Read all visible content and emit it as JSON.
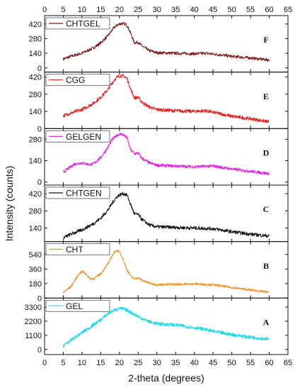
{
  "chart_data": {
    "type": "line",
    "xlabel": "2-theta (degrees)",
    "ylabel": "Intensity (counts)",
    "xlim": [
      0,
      65
    ],
    "x_ticks": [
      0,
      5,
      10,
      15,
      20,
      25,
      30,
      35,
      40,
      45,
      50,
      55,
      60,
      65
    ],
    "grid": false,
    "legend_placement": "top-left",
    "panels": [
      {
        "letter": "F",
        "series_name": "CHTGEL",
        "color": "#7a1414",
        "ylim": [
          -40,
          500
        ],
        "y_ticks": [
          0,
          140,
          280,
          420
        ],
        "x": [
          5,
          7,
          10,
          13,
          15,
          17,
          18,
          19,
          20,
          21,
          22,
          23,
          24,
          25,
          26,
          28,
          30,
          35,
          40,
          43,
          47,
          50,
          55,
          60
        ],
        "y": [
          85,
          110,
          140,
          190,
          240,
          310,
          360,
          400,
          420,
          425,
          410,
          330,
          240,
          245,
          210,
          165,
          145,
          140,
          135,
          140,
          125,
          110,
          95,
          75
        ],
        "noise": 14
      },
      {
        "letter": "E",
        "series_name": "CGG",
        "color": "#e41a1a",
        "ylim": [
          0,
          460
        ],
        "y_ticks": [
          0,
          140,
          280,
          420
        ],
        "x": [
          5,
          7,
          10,
          13,
          15,
          17,
          18,
          19,
          20,
          21,
          22,
          23,
          24,
          25,
          26,
          28,
          30,
          35,
          40,
          43,
          47,
          50,
          55,
          60
        ],
        "y": [
          105,
          125,
          155,
          205,
          255,
          320,
          370,
          410,
          430,
          430,
          410,
          320,
          250,
          255,
          215,
          175,
          155,
          145,
          140,
          145,
          120,
          100,
          80,
          55
        ],
        "noise": 14
      },
      {
        "letter": "D",
        "series_name": "GELGEN",
        "color": "#e619e6",
        "ylim": [
          -20,
          350
        ],
        "y_ticks": [
          0,
          140,
          280
        ],
        "x": [
          5,
          7,
          8,
          10,
          12,
          13,
          15,
          17,
          18,
          19,
          20,
          21,
          22,
          23,
          24,
          25,
          26,
          28,
          30,
          35,
          40,
          45,
          50,
          55,
          60
        ],
        "y": [
          65,
          100,
          118,
          125,
          115,
          118,
          160,
          230,
          275,
          300,
          315,
          310,
          290,
          210,
          185,
          190,
          155,
          125,
          110,
          105,
          100,
          105,
          85,
          70,
          55
        ],
        "noise": 10
      },
      {
        "letter": "C",
        "series_name": "CHTGEN",
        "color": "#111111",
        "ylim": [
          30,
          490
        ],
        "y_ticks": [
          140,
          280,
          420
        ],
        "x": [
          5,
          7,
          10,
          13,
          15,
          17,
          18,
          19,
          20,
          21,
          22,
          23,
          24,
          25,
          26,
          28,
          30,
          35,
          40,
          45,
          50,
          55,
          60
        ],
        "y": [
          60,
          90,
          125,
          175,
          220,
          290,
          340,
          385,
          410,
          420,
          410,
          330,
          255,
          250,
          210,
          165,
          150,
          145,
          140,
          135,
          110,
          90,
          75
        ],
        "noise": 14
      },
      {
        "letter": "B",
        "series_name": "CHT",
        "color": "#f08c1e",
        "ylim": [
          0,
          700
        ],
        "y_ticks": [
          0,
          180,
          360,
          540
        ],
        "x": [
          5,
          7,
          8,
          9,
          10,
          11,
          12,
          13,
          15,
          17,
          18,
          19,
          20,
          21,
          22,
          23,
          24,
          25,
          26,
          28,
          30,
          35,
          40,
          45,
          50,
          55,
          60
        ],
        "y": [
          70,
          140,
          210,
          290,
          330,
          300,
          245,
          235,
          300,
          430,
          520,
          590,
          575,
          480,
          350,
          270,
          240,
          250,
          220,
          185,
          165,
          170,
          175,
          165,
          130,
          100,
          70
        ],
        "noise": 14
      },
      {
        "letter": "A",
        "series_name": "GEL",
        "color": "#19d8e8",
        "ylim": [
          -400,
          4000
        ],
        "y_ticks": [
          0,
          1100,
          2200,
          3300
        ],
        "x": [
          5,
          7,
          10,
          13,
          15,
          17,
          19,
          20,
          21,
          22,
          23,
          25,
          28,
          30,
          35,
          40,
          43,
          45,
          50,
          55,
          60
        ],
        "y": [
          300,
          700,
          1300,
          1900,
          2300,
          2800,
          3100,
          3200,
          3150,
          3050,
          2900,
          2550,
          2150,
          2000,
          1900,
          1700,
          1550,
          1400,
          1150,
          950,
          800
        ],
        "noise": 140
      }
    ]
  }
}
